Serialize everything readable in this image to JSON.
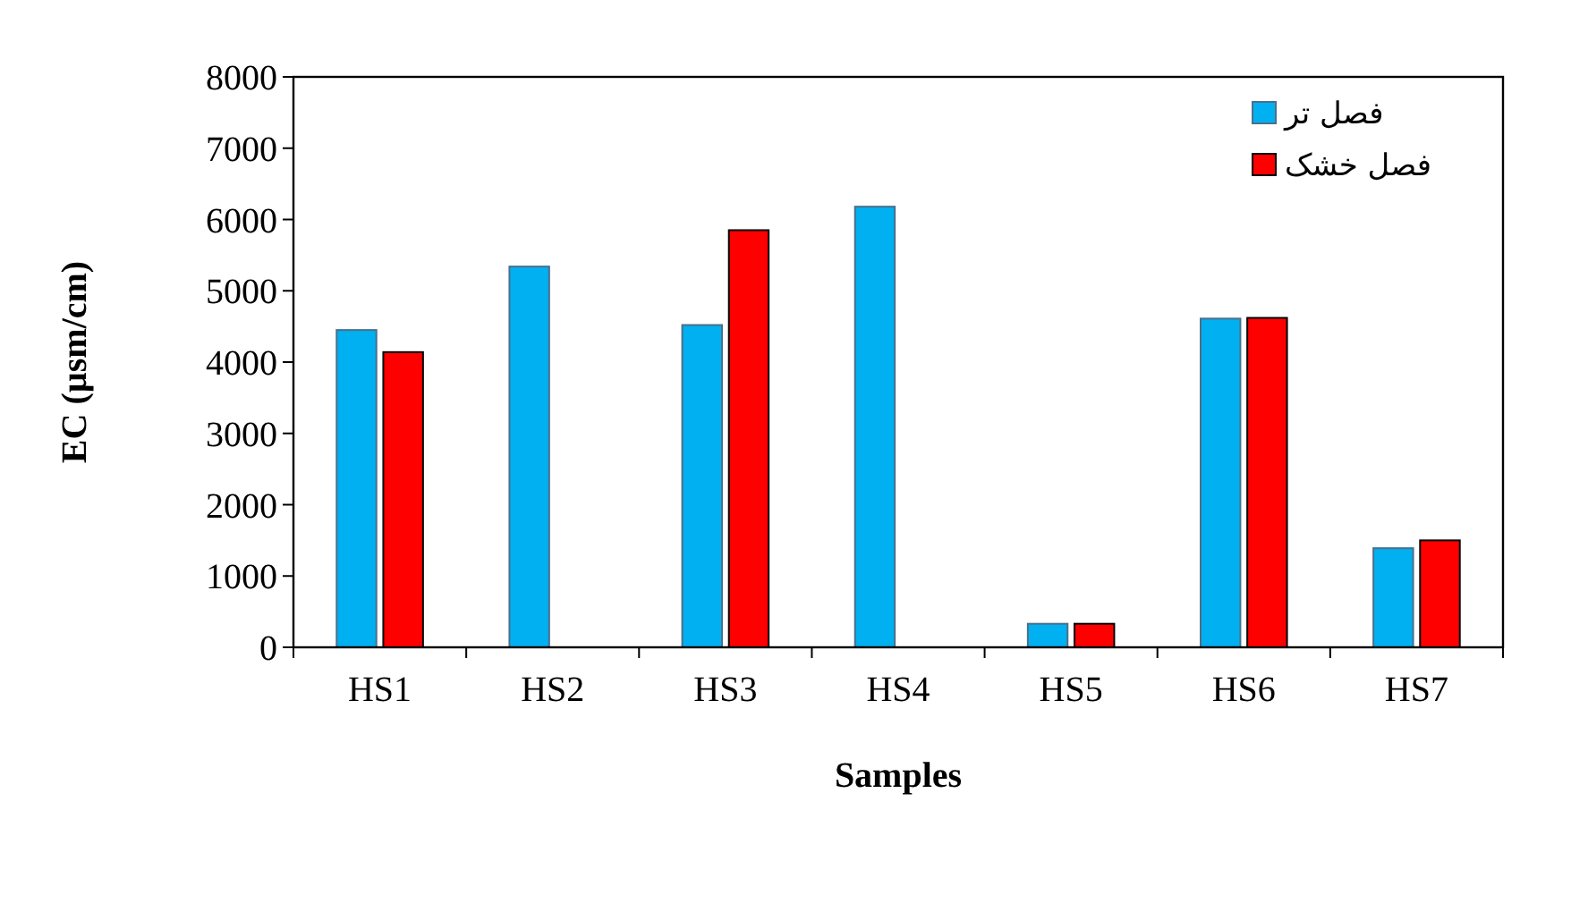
{
  "chart_data": {
    "type": "bar",
    "xlabel": "Samples",
    "ylabel": "EC (µsm/cm)",
    "categories": [
      "HS1",
      "HS2",
      "HS3",
      "HS4",
      "HS5",
      "HS6",
      "HS7"
    ],
    "series": [
      {
        "name": "فصل تر",
        "color": "#00b0f0",
        "values": [
          4450,
          5340,
          4520,
          6180,
          330,
          4610,
          1390
        ]
      },
      {
        "name": "فصل خشک",
        "color": "#ff0000",
        "values": [
          4140,
          null,
          5850,
          null,
          330,
          4620,
          1500
        ]
      }
    ],
    "ylim": [
      0,
      8000
    ],
    "yticks": [
      0,
      1000,
      2000,
      3000,
      4000,
      5000,
      6000,
      7000,
      8000
    ],
    "grid": false,
    "legend": "top right"
  }
}
